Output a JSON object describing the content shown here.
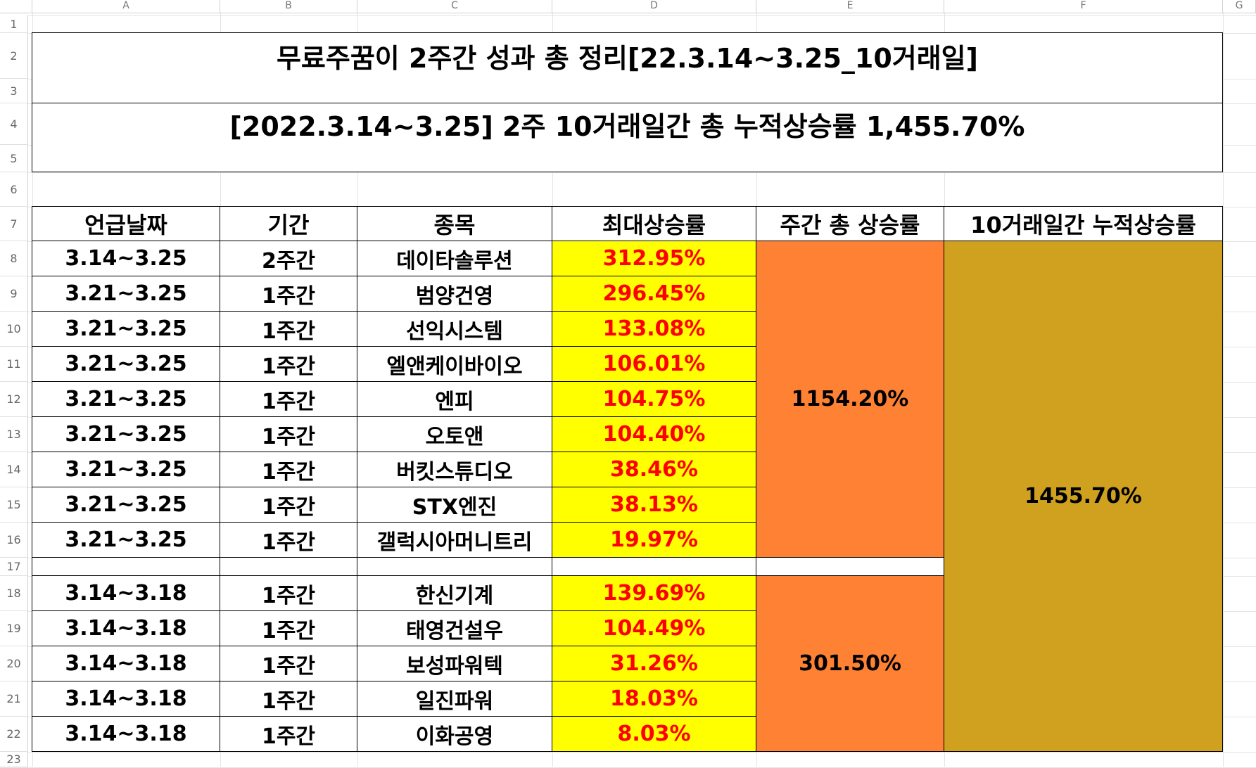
{
  "column_headers": [
    "A",
    "B",
    "C",
    "D",
    "E",
    "F",
    "G"
  ],
  "row_numbers": [
    "1",
    "2",
    "3",
    "4",
    "5",
    "6",
    "7",
    "8",
    "9",
    "10",
    "11",
    "12",
    "13",
    "14",
    "15",
    "16",
    "17",
    "18",
    "19",
    "20",
    "21",
    "22",
    "23"
  ],
  "title": "무료주꿈이 2주간 성과 총 정리[22.3.14~3.25_10거래일]",
  "subtitle": "[2022.3.14~3.25] 2주 10거래일간 총 누적상승률 1,455.70%",
  "table_headers": [
    "언급날짜",
    "기간",
    "종목",
    "최대상승률",
    "주간 총 상승률",
    "10거래일간 누적상승률"
  ],
  "week2_rows": [
    {
      "date": "3.14~3.25",
      "period": "2주간",
      "stock": "데이타솔루션",
      "max_rise": "312.95%"
    },
    {
      "date": "3.21~3.25",
      "period": "1주간",
      "stock": "범양건영",
      "max_rise": "296.45%"
    },
    {
      "date": "3.21~3.25",
      "period": "1주간",
      "stock": "선익시스템",
      "max_rise": "133.08%"
    },
    {
      "date": "3.21~3.25",
      "period": "1주간",
      "stock": "엘앤케이바이오",
      "max_rise": "106.01%"
    },
    {
      "date": "3.21~3.25",
      "period": "1주간",
      "stock": "엔피",
      "max_rise": "104.75%"
    },
    {
      "date": "3.21~3.25",
      "period": "1주간",
      "stock": "오토앤",
      "max_rise": "104.40%"
    },
    {
      "date": "3.21~3.25",
      "period": "1주간",
      "stock": "버킷스튜디오",
      "max_rise": "38.46%"
    },
    {
      "date": "3.21~3.25",
      "period": "1주간",
      "stock": "STX엔진",
      "max_rise": "38.13%"
    },
    {
      "date": "3.21~3.25",
      "period": "1주간",
      "stock": "갤럭시아머니트리",
      "max_rise": "19.97%"
    }
  ],
  "week1_rows": [
    {
      "date": "3.14~3.18",
      "period": "1주간",
      "stock": "한신기계",
      "max_rise": "139.69%"
    },
    {
      "date": "3.14~3.18",
      "period": "1주간",
      "stock": "태영건설우",
      "max_rise": "104.49%"
    },
    {
      "date": "3.14~3.18",
      "period": "1주간",
      "stock": "보성파워텍",
      "max_rise": "31.26%"
    },
    {
      "date": "3.14~3.18",
      "period": "1주간",
      "stock": "일진파워",
      "max_rise": "18.03%"
    },
    {
      "date": "3.14~3.18",
      "period": "1주간",
      "stock": "이화공영",
      "max_rise": "8.03%"
    }
  ],
  "week2_total": "1154.20%",
  "week1_total": "301.50%",
  "cumulative_total": "1455.70%",
  "colors": {
    "yellow": "#ffff00",
    "orange": "#ff8133",
    "gold": "#cfa11f",
    "percent_text": "#ff0000"
  }
}
